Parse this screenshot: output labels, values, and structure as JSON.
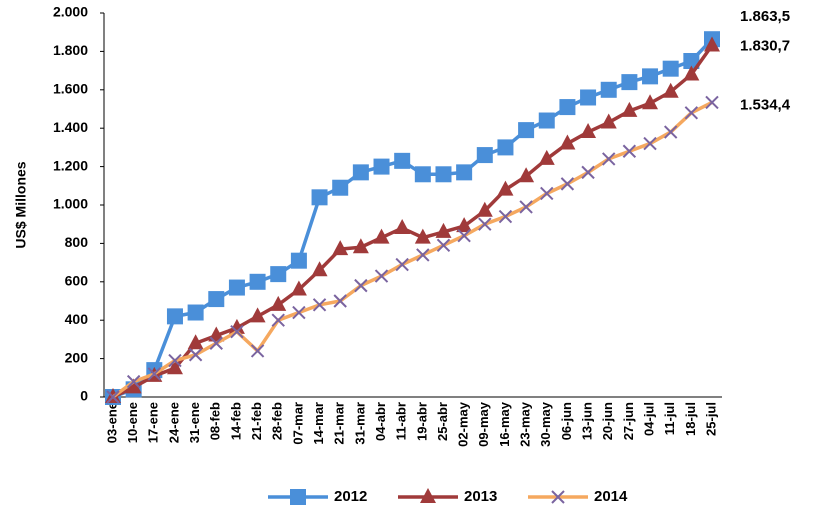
{
  "chart_data": {
    "type": "line",
    "y_label": "US$ Millones",
    "categories": [
      "03-ene",
      "10-ene",
      "17-ene",
      "24-ene",
      "31-ene",
      "08-feb",
      "14-feb",
      "21-feb",
      "28-feb",
      "07-mar",
      "14-mar",
      "21-mar",
      "31-mar",
      "04-abr",
      "11-abr",
      "19-abr",
      "25-abr",
      "02-may",
      "09-may",
      "16-may",
      "23-may",
      "30-may",
      "06-jun",
      "13-jun",
      "20-jun",
      "27-jun",
      "04-jul",
      "11-jul",
      "18-jul",
      "25-jul"
    ],
    "series": [
      {
        "name": "2012",
        "color": "#4a8fd9",
        "marker": "square",
        "marker_color": "#4a8fd9",
        "values": [
          0,
          40,
          140,
          420,
          440,
          510,
          570,
          600,
          640,
          710,
          1040,
          1090,
          1170,
          1200,
          1230,
          1160,
          1160,
          1170,
          1260,
          1300,
          1390,
          1440,
          1510,
          1560,
          1600,
          1640,
          1670,
          1710,
          1750,
          1863.5
        ],
        "value_labels": [
          null,
          null,
          null,
          null,
          null,
          null,
          null,
          null,
          null,
          null,
          null,
          null,
          null,
          null,
          null,
          null,
          null,
          null,
          null,
          null,
          null,
          null,
          null,
          null,
          null,
          null,
          null,
          null,
          null,
          "1.863,5"
        ]
      },
      {
        "name": "2013",
        "color": "#a03a3a",
        "marker": "triangle",
        "marker_color": "#a03a3a",
        "values": [
          0,
          50,
          110,
          150,
          280,
          320,
          360,
          420,
          480,
          560,
          660,
          770,
          780,
          830,
          880,
          830,
          860,
          890,
          970,
          1080,
          1150,
          1240,
          1320,
          1380,
          1430,
          1490,
          1530,
          1590,
          1680,
          1830.7
        ],
        "value_labels": [
          null,
          null,
          null,
          null,
          null,
          null,
          null,
          null,
          null,
          null,
          null,
          null,
          null,
          null,
          null,
          null,
          null,
          null,
          null,
          null,
          null,
          null,
          null,
          null,
          null,
          null,
          null,
          null,
          null,
          "1.830,7"
        ]
      },
      {
        "name": "2014",
        "color": "#f5a85f",
        "marker": "cross",
        "marker_color": "#7a64a0",
        "values": [
          0,
          80,
          120,
          190,
          220,
          280,
          340,
          240,
          400,
          440,
          480,
          500,
          580,
          630,
          690,
          740,
          790,
          840,
          900,
          940,
          990,
          1060,
          1110,
          1170,
          1240,
          1280,
          1320,
          1380,
          1480,
          1534.4
        ],
        "value_labels": [
          null,
          null,
          null,
          null,
          null,
          null,
          null,
          null,
          null,
          null,
          null,
          null,
          null,
          null,
          null,
          null,
          null,
          null,
          null,
          null,
          null,
          null,
          null,
          null,
          null,
          null,
          null,
          null,
          null,
          "1.534,4"
        ]
      }
    ],
    "ylim": [
      0,
      2000
    ],
    "yticks": [
      0,
      200,
      400,
      600,
      800,
      {
        "value": 1000,
        "label": "1.000"
      },
      {
        "value": 1200,
        "label": "1.200"
      },
      {
        "value": 1400,
        "label": "1.400"
      },
      {
        "value": 1600,
        "label": "1.600"
      },
      {
        "value": 1800,
        "label": "1.800"
      },
      {
        "value": 2000,
        "label": "2.000"
      }
    ],
    "grid": false,
    "legend": "bottom"
  }
}
